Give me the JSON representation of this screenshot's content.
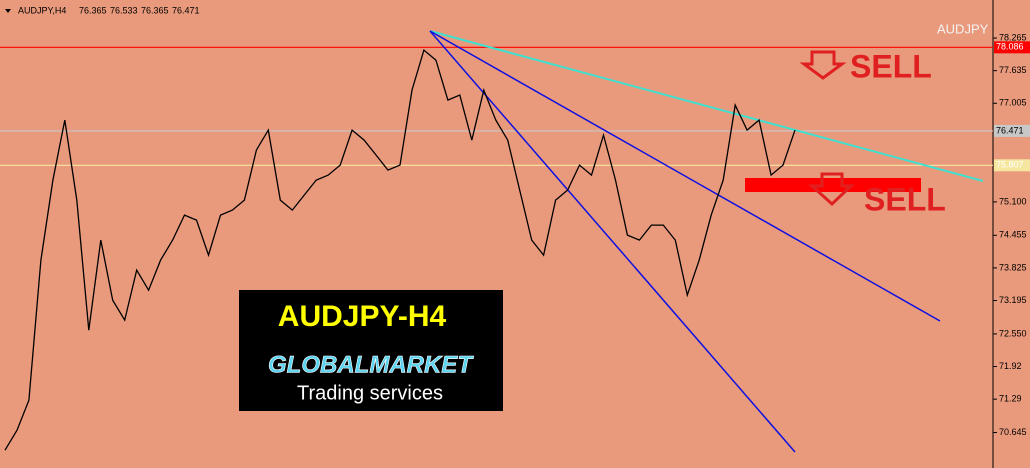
{
  "chart_data": {
    "type": "line",
    "symbol": "AUDJPY,H4",
    "ohlc": [
      76.365,
      76.533,
      76.365,
      76.471
    ],
    "watermark": "AUDJPY",
    "color": "#000000",
    "values": [
      70.304,
      70.69,
      71.27,
      73.975,
      75.521,
      76.68,
      75.135,
      72.622,
      74.362,
      73.202,
      72.816,
      73.782,
      73.395,
      73.975,
      74.362,
      74.845,
      74.748,
      74.072,
      74.845,
      74.941,
      75.135,
      76.101,
      76.487,
      75.135,
      74.941,
      75.231,
      75.521,
      75.618,
      75.811,
      76.487,
      76.294,
      76.004,
      75.714,
      75.811,
      77.26,
      78.033,
      77.84,
      77.067,
      77.164,
      76.294,
      77.26,
      76.68,
      76.294,
      75.328,
      74.362,
      74.072,
      75.135,
      75.328,
      75.811,
      75.618,
      76.391,
      75.521,
      74.458,
      74.362,
      74.651,
      74.651,
      74.362,
      73.299,
      73.975,
      74.845,
      75.521,
      76.97,
      76.487,
      76.68,
      75.618,
      75.811,
      76.487
    ],
    "ylim": [
      69.96,
      79.0
    ],
    "yticks": [
      78.265,
      77.635,
      77.005,
      {
        "value": 75.1,
        "label": "75.100"
      },
      74.455,
      73.825,
      73.195,
      {
        "value": 72.55,
        "label": "72.550"
      },
      71.92,
      71.29,
      70.645
    ],
    "price_lines": [
      {
        "value": 78.086,
        "color": "#ff0000"
      },
      {
        "value": 76.471,
        "color": "#c8c8c8"
      },
      {
        "value": 75.807,
        "color": "#f5e6a0"
      }
    ],
    "annotations": {
      "sell": [
        "SELL",
        "SELL"
      ],
      "logo_title": "AUDJPY-H4",
      "logo_brand": "GLOBALMARKET",
      "logo_sub": "Trading services"
    }
  }
}
